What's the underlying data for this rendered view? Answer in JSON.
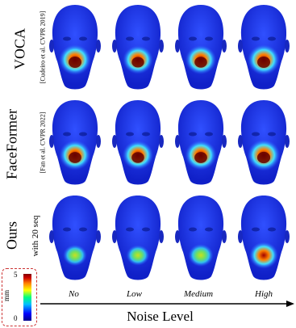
{
  "rows": [
    {
      "label": "VOCA",
      "sub": "[Cudeiro et al. CVPR 2019]",
      "heat": [
        1.0,
        0.85,
        0.9,
        1.0
      ]
    },
    {
      "label": "FaceFormer",
      "sub": "[Fan et al. CVPR 2022]",
      "heat": [
        0.95,
        0.9,
        0.95,
        1.05
      ]
    },
    {
      "label": "Ours",
      "sub": "with 20 seq",
      "heat": [
        0.35,
        0.3,
        0.45,
        0.75
      ]
    }
  ],
  "noise_levels": [
    "No",
    "Low",
    "Medium",
    "High"
  ],
  "x_axis_title": "Noise Level",
  "colorbar": {
    "unit": "mm",
    "min": "0",
    "max": "5"
  },
  "colors": {
    "base": "#1a33e6",
    "accent": "#c33"
  }
}
